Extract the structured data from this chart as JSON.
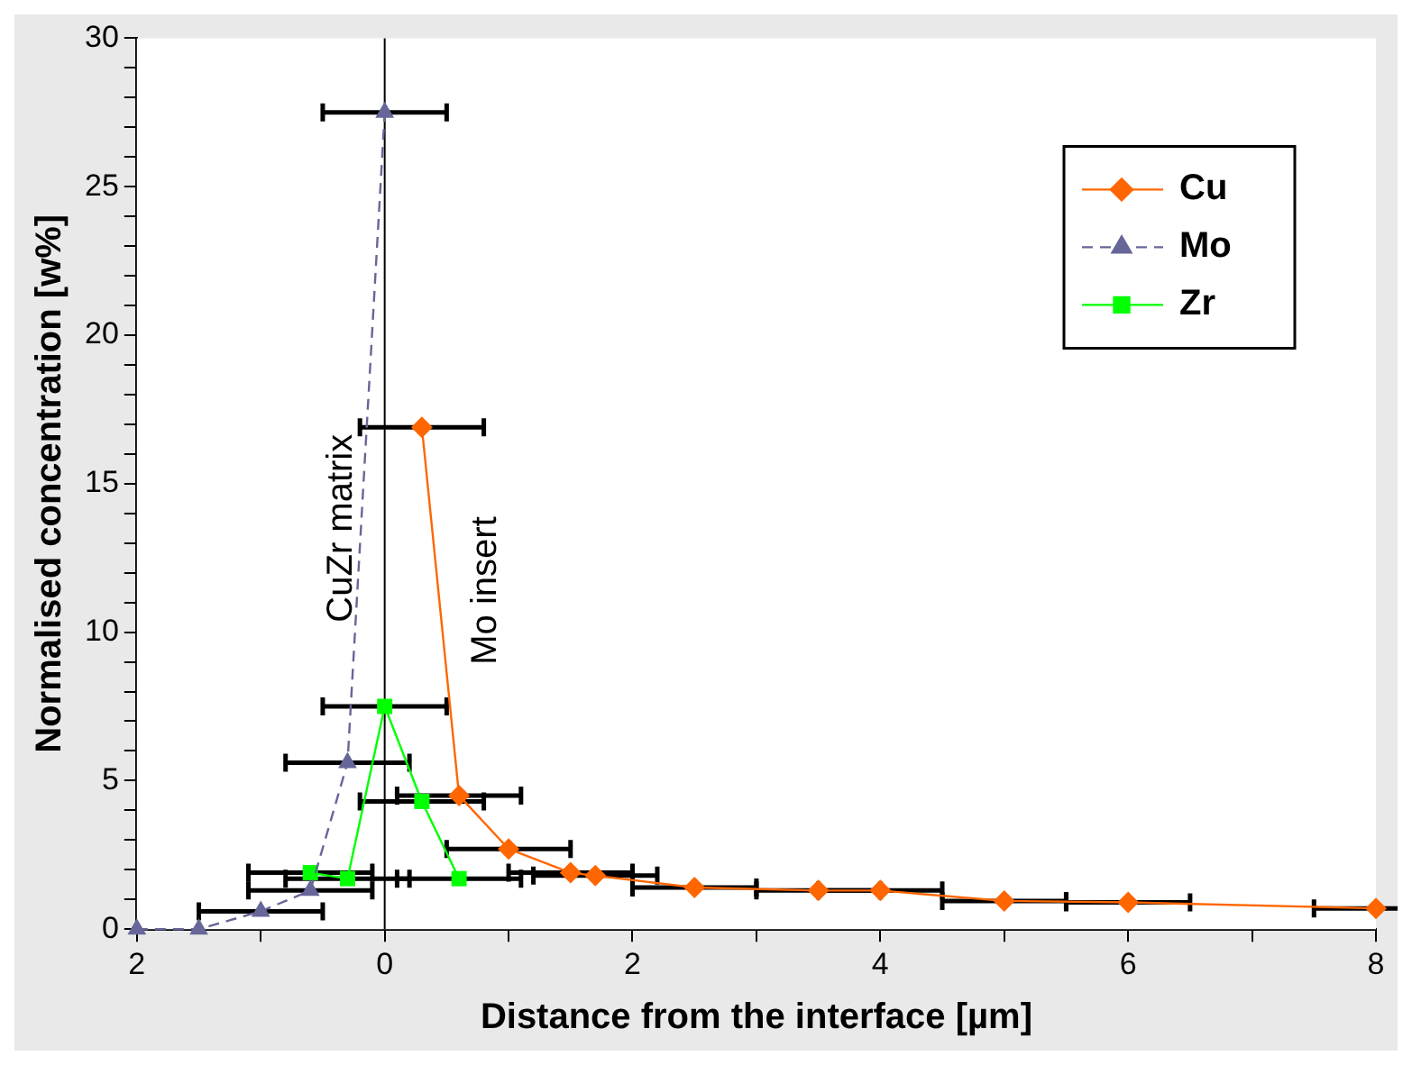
{
  "chart_data": {
    "type": "line",
    "xlabel": "Distance from the interface [µm]",
    "ylabel": "Normalised concentration [w%]",
    "xlim": [
      -2,
      8
    ],
    "xticks": [
      {
        "value": -2,
        "label": "2"
      },
      {
        "value": -1,
        "label": null
      },
      0,
      {
        "value": 1,
        "label": null
      },
      2,
      {
        "value": 3,
        "label": null
      },
      4,
      {
        "value": 5,
        "label": null
      },
      6,
      {
        "value": 7,
        "label": null
      },
      8
    ],
    "ylim": [
      0,
      30
    ],
    "yticks": [
      0,
      {
        "value": 1,
        "label": null
      },
      {
        "value": 2,
        "label": null
      },
      {
        "value": 3,
        "label": null
      },
      {
        "value": 4,
        "label": null
      },
      5,
      {
        "value": 6,
        "label": null
      },
      {
        "value": 7,
        "label": null
      },
      {
        "value": 8,
        "label": null
      },
      {
        "value": 9,
        "label": null
      },
      10,
      {
        "value": 11,
        "label": null
      },
      {
        "value": 12,
        "label": null
      },
      {
        "value": 13,
        "label": null
      },
      {
        "value": 14,
        "label": null
      },
      15,
      {
        "value": 16,
        "label": null
      },
      {
        "value": 17,
        "label": null
      },
      {
        "value": 18,
        "label": null
      },
      {
        "value": 19,
        "label": null
      },
      20,
      {
        "value": 21,
        "label": null
      },
      {
        "value": 22,
        "label": null
      },
      {
        "value": 23,
        "label": null
      },
      {
        "value": 24,
        "label": null
      },
      25,
      {
        "value": 26,
        "label": null
      },
      {
        "value": 27,
        "label": null
      },
      {
        "value": 28,
        "label": null
      },
      {
        "value": 29,
        "label": null
      },
      30
    ],
    "grid": false,
    "legend": "top right",
    "series": [
      {
        "name": "Cu",
        "color": "#ff6600",
        "marker": "diamond",
        "line_style": "solid",
        "x": [
          0.3,
          0.6,
          1.0,
          1.5,
          1.7,
          2.5,
          3.5,
          4.0,
          5.0,
          6.0,
          8.0
        ],
        "values": [
          16.9,
          4.5,
          2.7,
          1.9,
          1.8,
          1.4,
          1.3,
          1.3,
          0.95,
          0.9,
          0.7
        ],
        "xerrors": [
          0.5,
          0.5,
          0.5,
          0.5,
          0.5,
          0.5,
          0.5,
          0.5,
          0.5,
          0.5,
          0.5
        ]
      },
      {
        "name": "Mo",
        "color": "#666699",
        "marker": "triangle",
        "line_style": "dashed",
        "x": [
          -2,
          -1.5,
          -1,
          -0.6,
          -0.3,
          0
        ],
        "values": [
          0,
          0,
          0.6,
          1.3,
          5.6,
          27.5
        ],
        "xerrors": [
          null,
          null,
          0.5,
          0.5,
          0.5,
          0.5
        ]
      },
      {
        "name": "Zr",
        "color": "#00ff00",
        "marker": "square",
        "line_style": "solid",
        "x": [
          -0.6,
          -0.3,
          0,
          0.3,
          0.6
        ],
        "values": [
          1.9,
          1.7,
          7.5,
          4.3,
          1.7
        ],
        "xerrors": [
          0.5,
          0.5,
          0.5,
          0.5,
          0.5
        ]
      }
    ],
    "ref_lines": [
      {
        "axis": "x",
        "value": 0,
        "color": "#000000"
      }
    ],
    "annotations": [
      "CuZr matrix",
      "Mo insert"
    ]
  }
}
